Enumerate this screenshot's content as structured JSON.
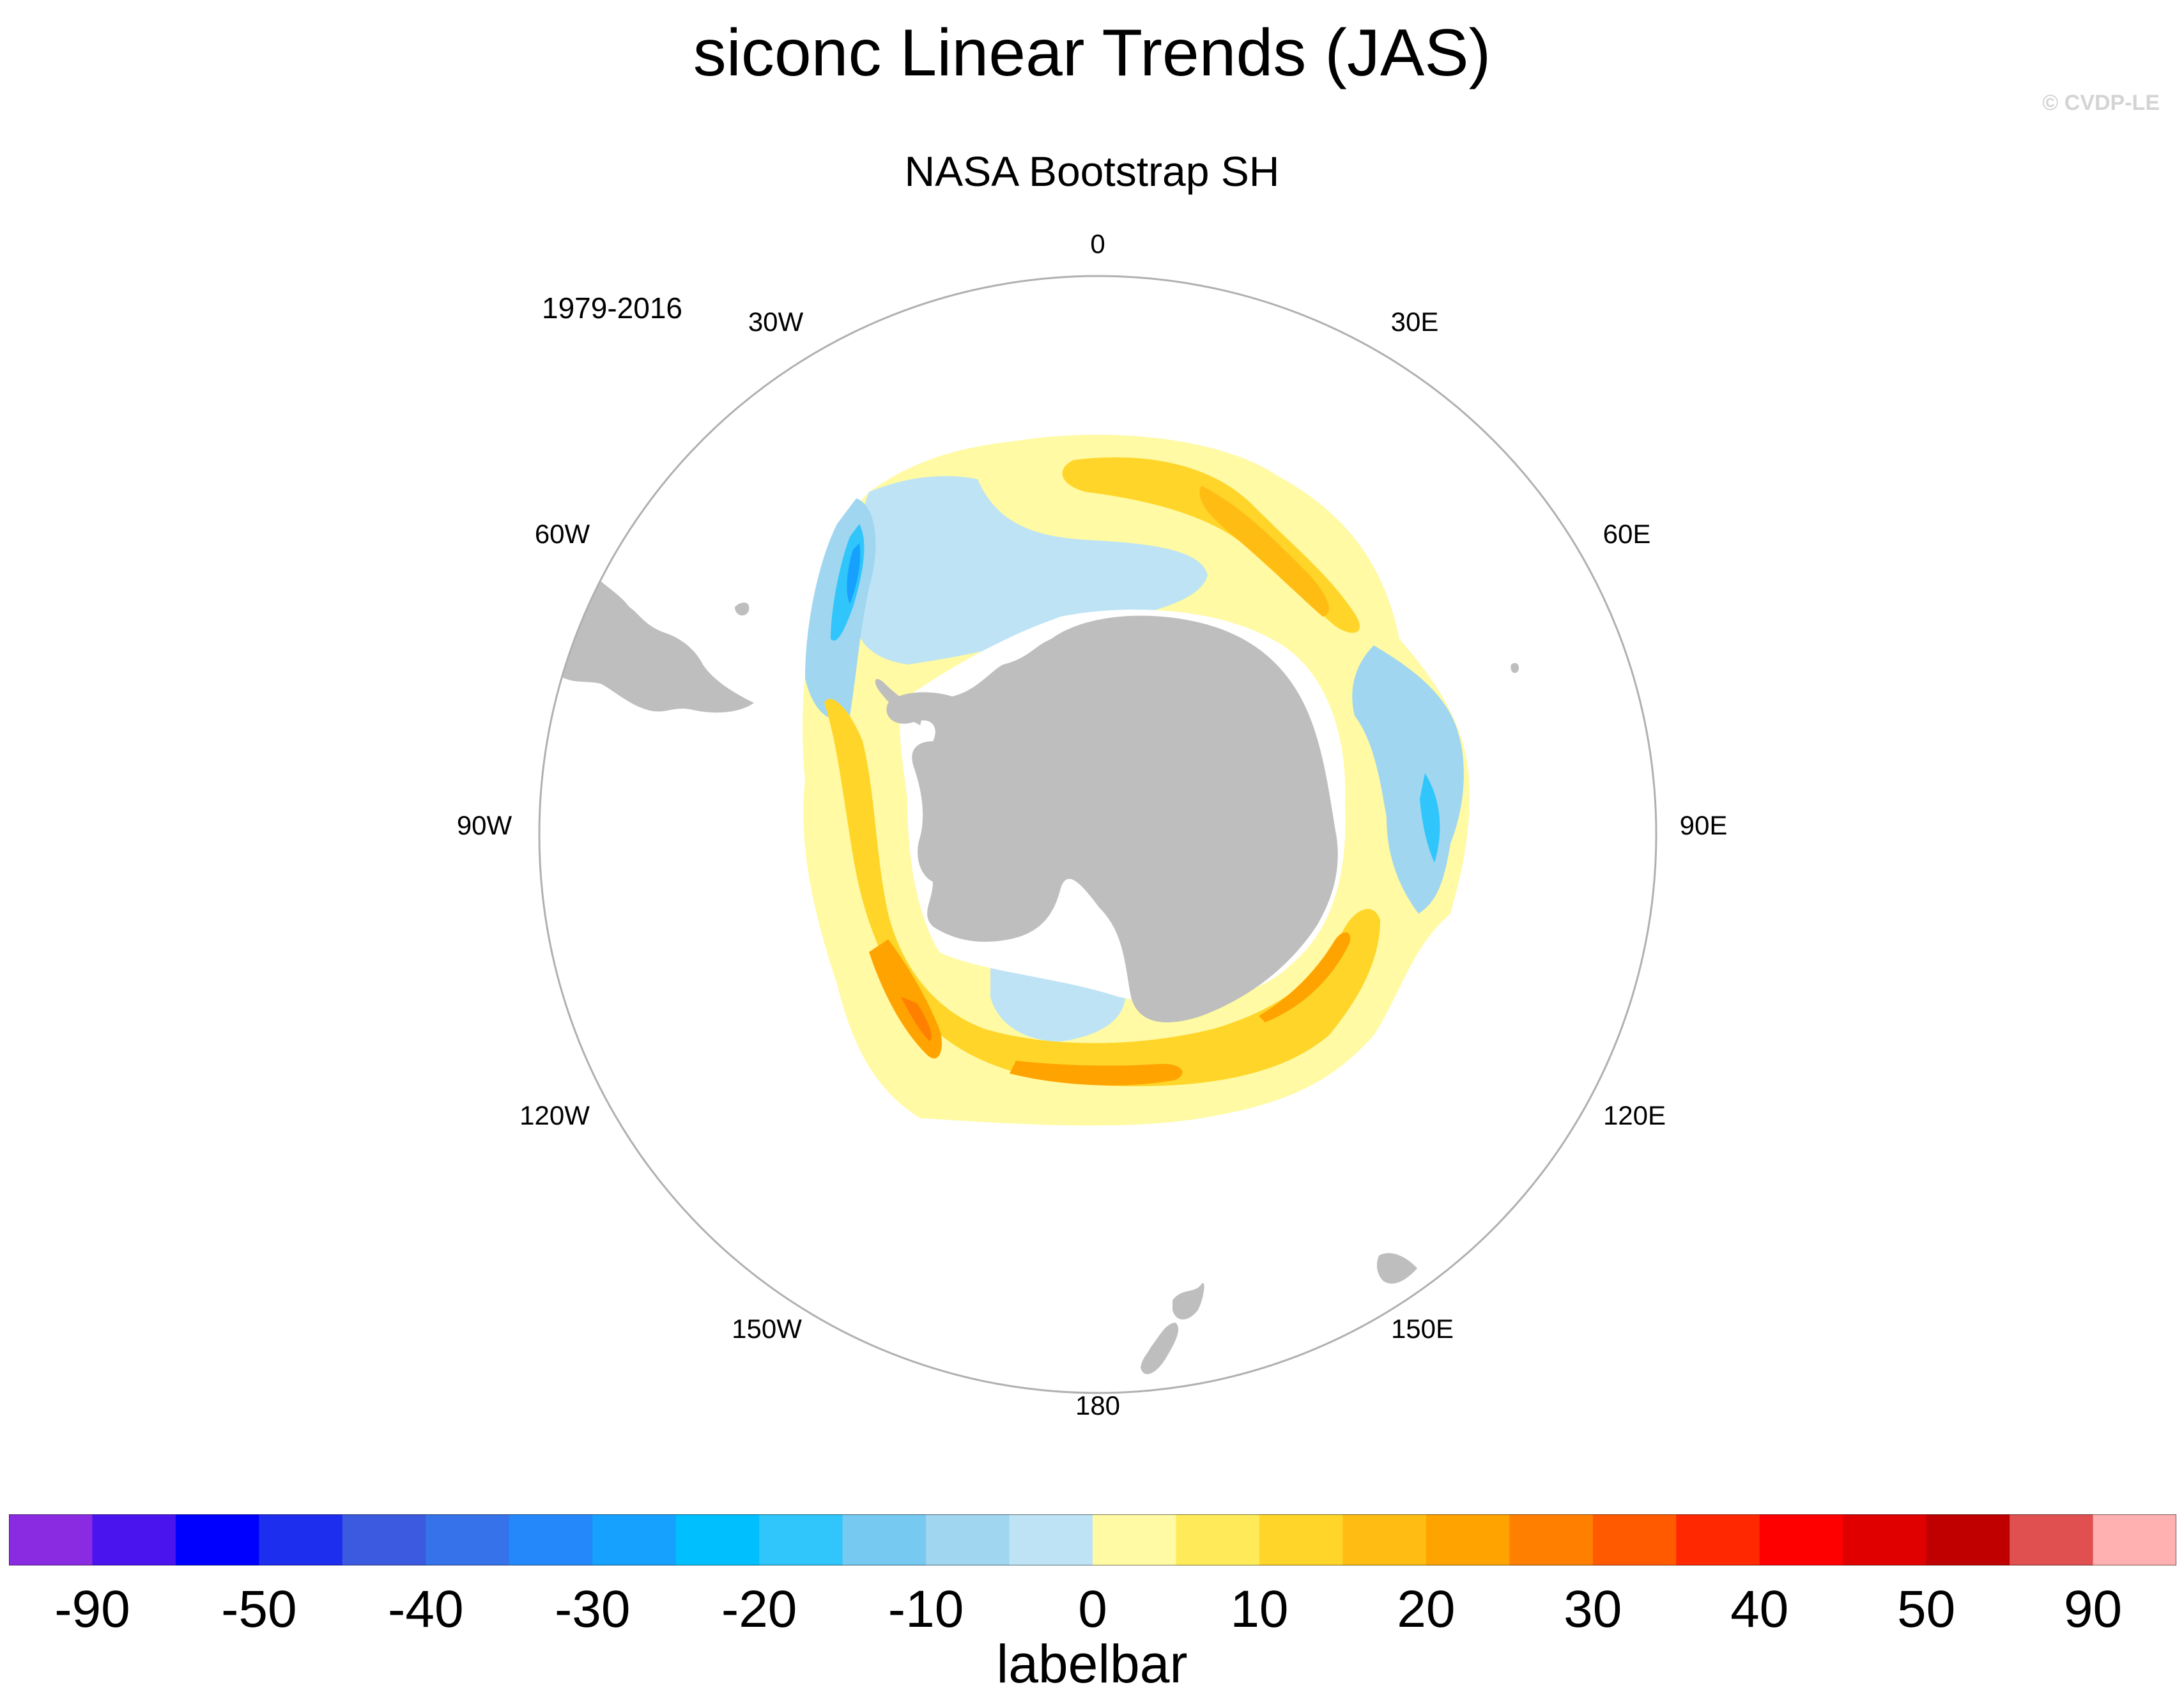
{
  "title": "siconc Linear Trends (JAS)",
  "subtitle": "NASA Bootstrap SH",
  "credit": "© CVDP-LE",
  "period": "1979-2016",
  "longitude_labels": {
    "lon_0": "0",
    "lon_30e": "30E",
    "lon_60e": "60E",
    "lon_90e": "90E",
    "lon_120e": "120E",
    "lon_150e": "150E",
    "lon_180": "180",
    "lon_150w": "150W",
    "lon_120w": "120W",
    "lon_90w": "90W",
    "lon_60w": "60W",
    "lon_30w": "30W"
  },
  "colors": {
    "land": "#bebebe",
    "map_border": "#b0b0b0",
    "colorbar": [
      "#8a2be2",
      "#4a14ee",
      "#0000ff",
      "#1e2eee",
      "#3c5ae0",
      "#3673ea",
      "#2488fa",
      "#16a1ff",
      "#00bfff",
      "#30c6fb",
      "#76caf2",
      "#a0d6f0",
      "#bde3f5",
      "#fffaa3",
      "#ffeb5a",
      "#ffd52a",
      "#ffbd14",
      "#ffa300",
      "#ff8000",
      "#ff5a00",
      "#ff2800",
      "#ff0000",
      "#e00000",
      "#c00000",
      "#e05050",
      "#ffb0b0"
    ]
  },
  "labelbar": {
    "title": "labelbar",
    "ticks": [
      "-90",
      "-50",
      "-40",
      "-30",
      "-20",
      "-10",
      "0",
      "10",
      "20",
      "30",
      "40",
      "50",
      "90"
    ]
  }
}
